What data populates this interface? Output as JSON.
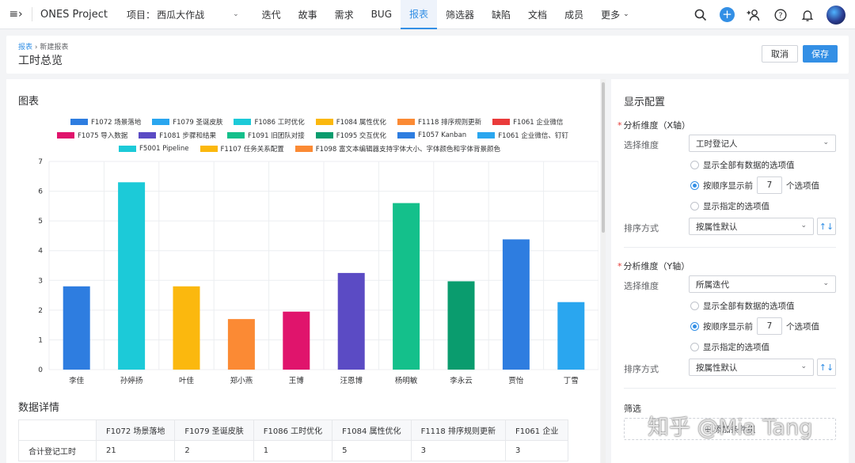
{
  "nav": {
    "brand": "ONES Project",
    "project_label": "项目：",
    "project_name": "西瓜大作战",
    "items": [
      "迭代",
      "故事",
      "需求",
      "BUG",
      "报表",
      "筛选器",
      "缺陷",
      "文档",
      "成员"
    ],
    "more_label": "更多",
    "active_item": "报表"
  },
  "header": {
    "breadcrumb_link": "报表",
    "breadcrumb_sep": "›",
    "breadcrumb_current": "新建报表",
    "title": "工时总览",
    "cancel_label": "取消",
    "save_label": "保存"
  },
  "chart_section_title": "图表",
  "chart_data": {
    "type": "bar",
    "categories": [
      "李佳",
      "孙婷扬",
      "叶佳",
      "郑小燕",
      "王博",
      "汪恩博",
      "杨明敏",
      "李永云",
      "贾怡",
      "丁雪"
    ],
    "values": [
      2.8,
      6.3,
      2.8,
      1.7,
      1.95,
      3.25,
      5.6,
      2.97,
      4.38,
      2.27
    ],
    "bar_colors": [
      "#2e7de0",
      "#1ccad8",
      "#fbb80e",
      "#fb8a34",
      "#e0146c",
      "#5b4bc4",
      "#14c08b",
      "#0a9c6e",
      "#2e7de0",
      "#2aa6ef"
    ],
    "ylim": [
      0,
      7
    ],
    "yticks": [
      "0",
      "1",
      "2",
      "3",
      "4",
      "5",
      "6",
      "7"
    ],
    "grid": true,
    "legend_position": "top",
    "legend": [
      [
        {
          "name": "F1072 场景落地",
          "color": "#2e7de0"
        },
        {
          "name": "F1079 圣诞皮肤",
          "color": "#2aa6ef"
        },
        {
          "name": "F1086 工时优化",
          "color": "#1ccad8"
        },
        {
          "name": "F1084 属性优化",
          "color": "#fbb80e"
        },
        {
          "name": "F1118 排序规则更新",
          "color": "#fb8a34"
        },
        {
          "name": "F1061 企业微信",
          "color": "#ea3b3b"
        }
      ],
      [
        {
          "name": "F1075 导入数据",
          "color": "#e0146c"
        },
        {
          "name": "F1081 步骤和结果",
          "color": "#5b4bc4"
        },
        {
          "name": "F1091 旧团队对接",
          "color": "#14c08b"
        },
        {
          "name": "F1095 交互优化",
          "color": "#0a9c6e"
        },
        {
          "name": "F1057 Kanban",
          "color": "#2e7de0"
        },
        {
          "name": "F1061 企业微信、钉钉",
          "color": "#2aa6ef"
        }
      ],
      [
        {
          "name": "F5001 Pipeline",
          "color": "#1ccad8"
        },
        {
          "name": "F1107 任务关系配置",
          "color": "#fbb80e"
        },
        {
          "name": "F1098 富文本编辑器支持字体大小、字体颜色和字体背景颜色",
          "color": "#fb8a34"
        }
      ]
    ]
  },
  "details": {
    "title": "数据详情",
    "columns": [
      "",
      "F1072 场景落地",
      "F1079 圣诞皮肤",
      "F1086 工时优化",
      "F1084 属性优化",
      "F1118 排序规则更新",
      "F1061 企业"
    ],
    "rows": [
      [
        "合计登记工时",
        "21",
        "2",
        "1",
        "5",
        "3",
        "3"
      ]
    ]
  },
  "config": {
    "title": "显示配置",
    "x_axis": {
      "heading": "分析维度（X轴）",
      "dimension_label": "选择维度",
      "dimension_value": "工时登记人",
      "option_all": "显示全部有数据的选项值",
      "option_top_prefix": "按顺序显示前",
      "option_top_value": "7",
      "option_top_suffix": "个选项值",
      "option_specified": "显示指定的选项值",
      "sort_label": "排序方式",
      "sort_value": "按属性默认"
    },
    "y_axis": {
      "heading": "分析维度（Y轴）",
      "dimension_label": "选择维度",
      "dimension_value": "所属迭代",
      "option_all": "显示全部有数据的选项值",
      "option_top_prefix": "按顺序显示前",
      "option_top_value": "7",
      "option_top_suffix": "个选项值",
      "option_specified": "显示指定的选项值",
      "sort_label": "排序方式",
      "sort_value": "按属性默认"
    },
    "filter_title": "筛选",
    "add_filter_label": "+ 添加条件组"
  },
  "watermark": "知乎 @Mia Tang",
  "colors": {
    "accent": "#338fe5",
    "required": "#e53935"
  }
}
